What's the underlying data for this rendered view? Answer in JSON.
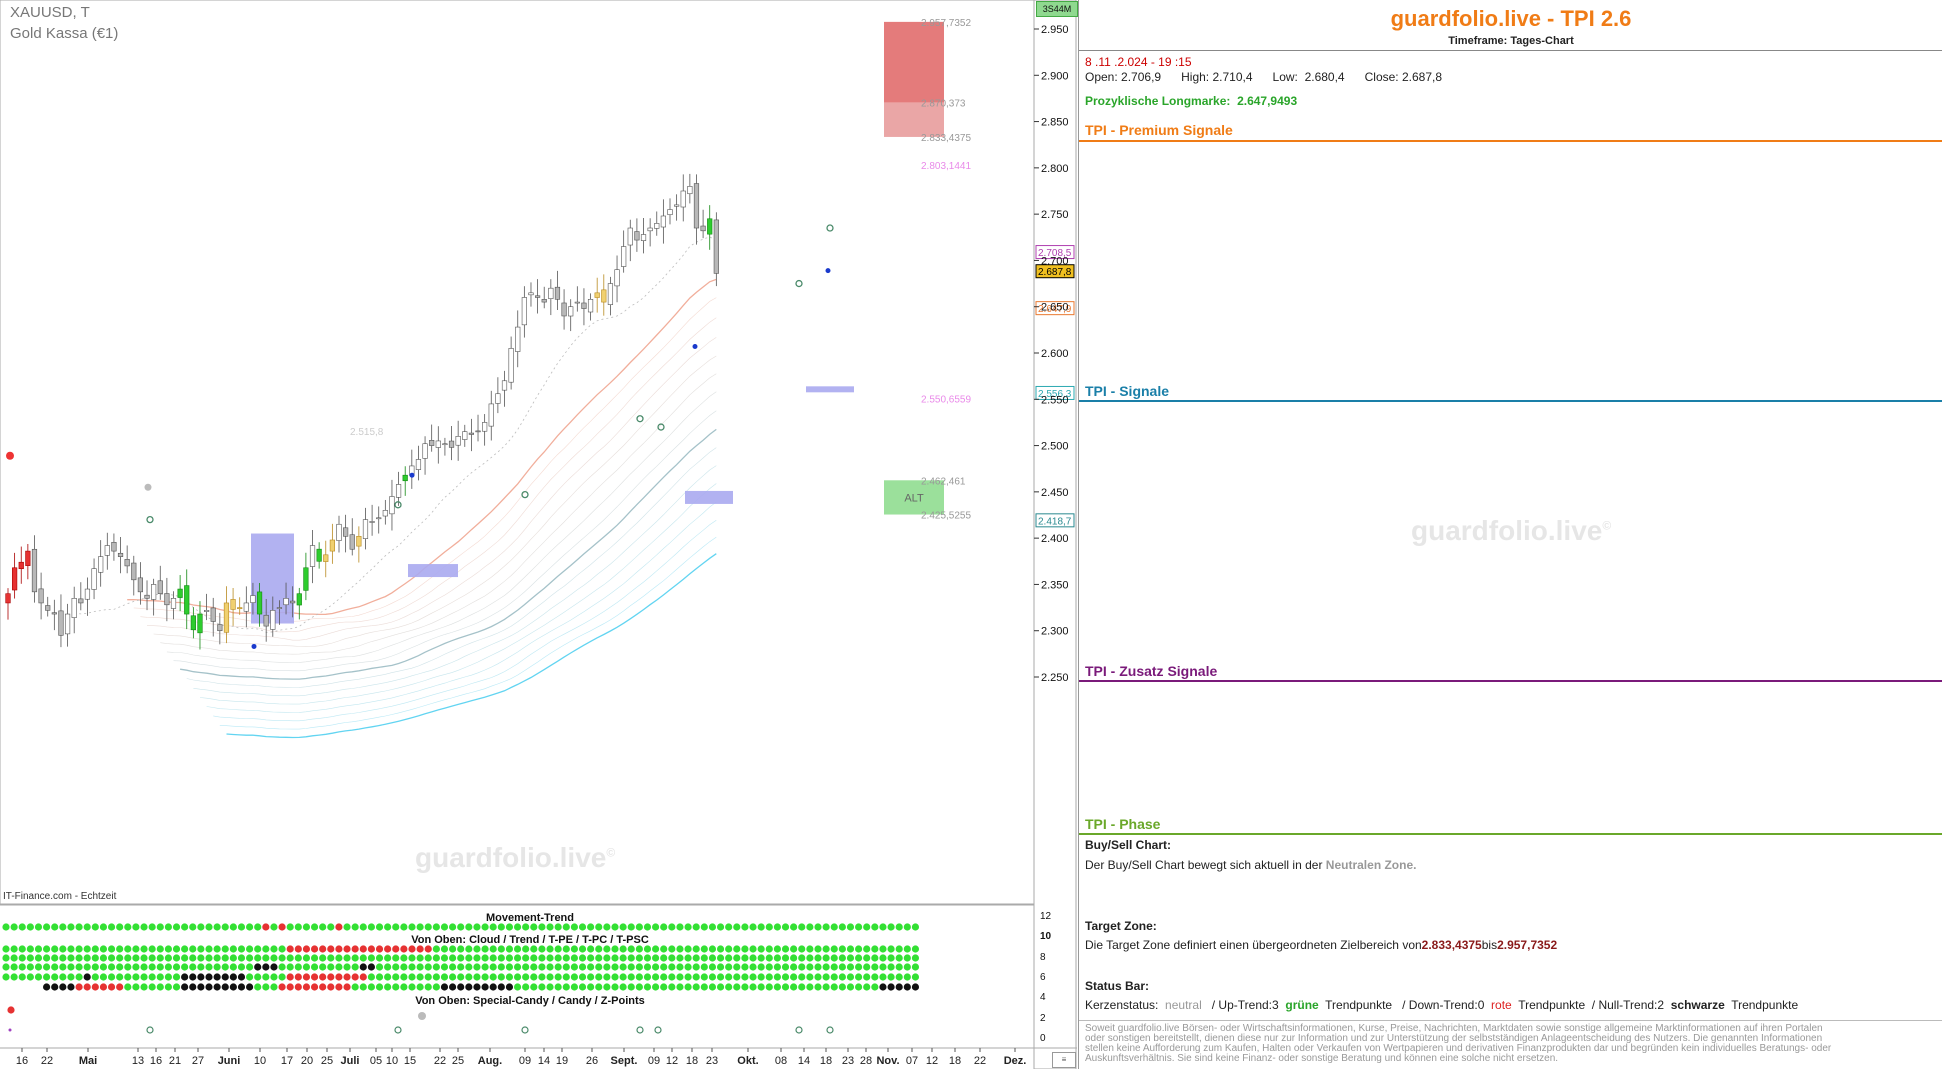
{
  "symbol": {
    "ticker": "XAUUSD, T",
    "name": "Gold Kassa (€1)"
  },
  "source_label": "IT-Finance.com - Echtzeit",
  "watermark": "guardfolio.live",
  "watermark_mark": "©",
  "time_badge": "3S44M",
  "colors": {
    "up": "#22c322",
    "down": "#111111",
    "neutral": "#e63232",
    "accent": "#f07c16"
  },
  "chart_data": [
    {
      "type": "candlestick",
      "title": "XAUUSD, T",
      "ylim": [
        2210,
        2985
      ],
      "y_ticks": [
        "2.950",
        "2.900",
        "2.850",
        "2.800",
        "2.750",
        "2.700",
        "2.650",
        "2.600",
        "2.550",
        "2.500",
        "2.450",
        "2.400",
        "2.350",
        "2.300",
        "2.250"
      ],
      "x_ticks": [
        "16",
        "22",
        "Mai",
        "13",
        "16",
        "21",
        "27",
        "Juni",
        "10",
        "17",
        "20",
        "25",
        "Juli",
        "05",
        "10",
        "15",
        "22",
        "25",
        "Aug.",
        "09",
        "14",
        "19",
        "26",
        "Sept.",
        "09",
        "12",
        "18",
        "23",
        "Okt.",
        "08",
        "14",
        "18",
        "23",
        "28",
        "Nov.",
        "07",
        "12",
        "18",
        "22",
        "Dez."
      ],
      "price_labels": [
        {
          "value": 2708.5,
          "label": "2.708,5",
          "color": "#b040b0"
        },
        {
          "value": 2687.8,
          "label": "2.687,8",
          "color": "#000000",
          "bg": "#f0c020"
        },
        {
          "value": 2647.9,
          "label": "2.647,9",
          "color": "#e87830"
        },
        {
          "value": 2556.3,
          "label": "2.556,3",
          "color": "#2aa8b0"
        },
        {
          "value": 2418.7,
          "label": "2.418,7",
          "color": "#2a8a90"
        }
      ],
      "level_labels": [
        {
          "value": 2957.7352,
          "label": "2.957,7352",
          "color": "#999"
        },
        {
          "value": 2870.373,
          "label": "2.870,373",
          "color": "#999"
        },
        {
          "value": 2833.4375,
          "label": "2.833,4375",
          "color": "#999"
        },
        {
          "value": 2803.1441,
          "label": "2.803,1441",
          "color": "#e98ae9"
        },
        {
          "value": 2550.6559,
          "label": "2.550,6559",
          "color": "#e98ae9"
        },
        {
          "value": 2462.461,
          "label": "2.462,461",
          "color": "#999"
        },
        {
          "value": 2425.5255,
          "label": "2.425,5255",
          "color": "#999"
        }
      ],
      "faint_label": {
        "value": 2515.8,
        "label": "2.515,8"
      },
      "zone_label": "ALT",
      "candles": [
        2340,
        2368,
        2374,
        2386,
        2342,
        2330,
        2322,
        2318,
        2295,
        2318,
        2335,
        2330,
        2345,
        2367,
        2380,
        2392,
        2386,
        2380,
        2370,
        2355,
        2342,
        2335,
        2350,
        2340,
        2328,
        2335,
        2345,
        2318,
        2301,
        2318,
        2322,
        2310,
        2300,
        2330,
        2323,
        2325,
        2330,
        2338,
        2318,
        2305,
        2322,
        2325,
        2335,
        2330,
        2340,
        2368,
        2392,
        2375,
        2382,
        2398,
        2415,
        2402,
        2388,
        2402,
        2420,
        2418,
        2422,
        2430,
        2445,
        2458,
        2468,
        2478,
        2485,
        2502,
        2500,
        2505,
        2502,
        2498,
        2510,
        2515,
        2512,
        2515,
        2525,
        2545,
        2556,
        2570,
        2605,
        2628,
        2660,
        2665,
        2660,
        2655,
        2670,
        2658,
        2640,
        2650,
        2655,
        2648,
        2658,
        2665,
        2655,
        2675,
        2690,
        2715,
        2735,
        2722,
        2728,
        2735,
        2740,
        2748,
        2755,
        2760,
        2775,
        2780,
        2735,
        2732,
        2745,
        2686
      ],
      "movement_trend_label": "Movement-Trend",
      "cloud_label": "Von Oben: Cloud / Trend / T-PE / T-PC / T-PSC",
      "special_label": "Von Oben: Special-Candy / Candy / Z-Points",
      "sub_ticks": [
        "12",
        "10",
        "8",
        "6",
        "4",
        "2",
        "0"
      ]
    }
  ],
  "panel": {
    "title": "guardfolio.live - TPI 2.6",
    "subtitle": "Timeframe: Tages-Chart",
    "datetime": "8 .11 .2.024  - 19 :15",
    "ohlc": {
      "open_label": "Open:",
      "open": "2.706,9",
      "high_label": "High:",
      "high": "2.710,4",
      "low_label": "Low:",
      "low": "2.680,4",
      "close_label": "Close:",
      "close": "2.687,8"
    },
    "longmark_label": "Prozyklische Longmarke:",
    "longmark_value": "2.647,9493",
    "sections": {
      "premium": "TPI - Premium Signale",
      "signale": "TPI - Signale",
      "zusatz": "TPI - Zusatz Signale",
      "phase": "TPI - Phase"
    },
    "buysell_head": "Buy/Sell Chart:",
    "buysell_text": "Der Buy/Sell Chart bewegt sich aktuell in der",
    "buysell_zone": "Neutralen Zone.",
    "target_head": "Target Zone:",
    "target_text_1": "Die Target Zone definiert einen übergeordneten Zielbereich von",
    "target_from": "2.833,4375",
    "target_mid": "bis",
    "target_to": "2.957,7352",
    "status_head": "Status Bar:",
    "status": {
      "kerzen_label": "Kerzenstatus:",
      "kerzen_value": "neutral",
      "up_label": "/ Up-Trend:3",
      "up_word": "grüne",
      "tp1": "Trendpunkte",
      "down_label": "/ Down-Trend:0",
      "down_word": "rote",
      "tp2": "Trendpunkte",
      "null_label": "/ Null-Trend:2",
      "null_word": "schwarze",
      "tp3": "Trendpunkte"
    },
    "disclaimer": "Soweit guardfolio.live Börsen- oder Wirtschaftsinformationen, Kurse, Preise, Nachrichten, Marktdaten sowie sonstige allgemeine Marktinformationen auf ihren Portalen oder sonstigen bereitstellt, dienen diese nur zur Information und zur Unterstützung der selbstständigen Anlageentscheidung des Nutzers. Die genannten Informationen stellen keine Aufforderung zum Kaufen, Halten oder Verkaufen von Wertpapieren und derivativen Finanzprodukten dar und begründen kein individuelles Beratungs- oder Auskunftsverhältnis. Sie sind keine Finanz- oder sonstige Beratung und können eine solche nicht ersetzen."
  }
}
